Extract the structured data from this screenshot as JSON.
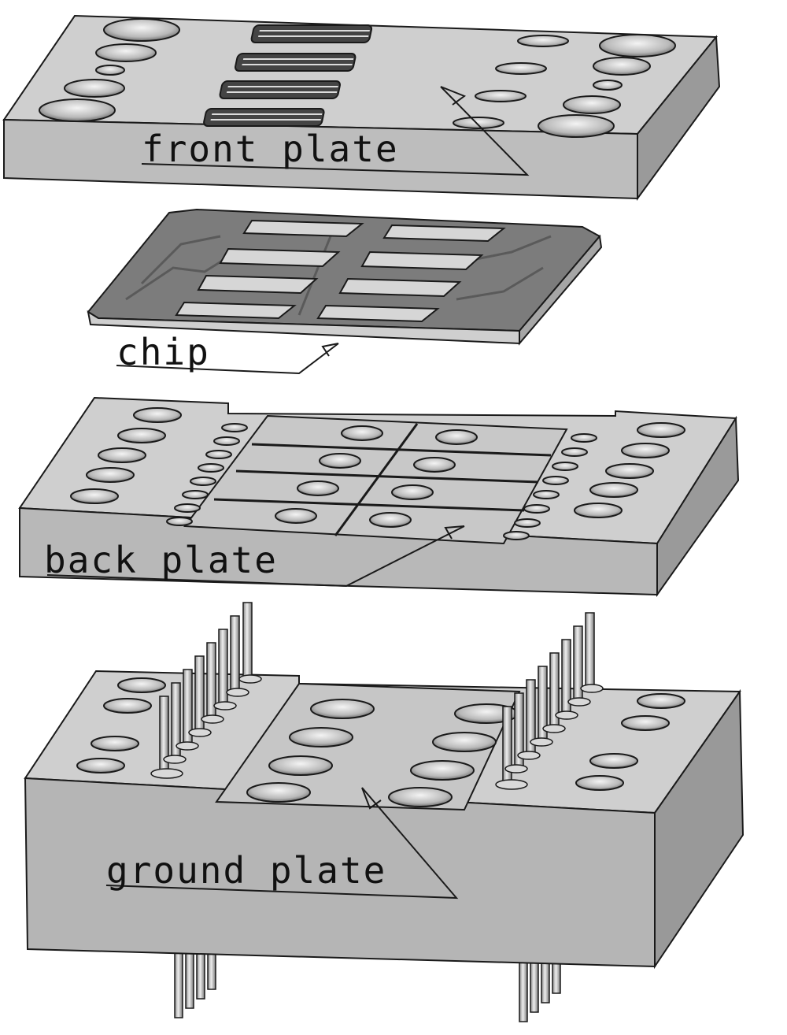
{
  "labels": {
    "front_plate": "front plate",
    "chip": "chip",
    "back_plate": "back plate",
    "ground_plate": "ground plate"
  },
  "colors": {
    "top_face": "#cfcfcf",
    "front_face": "#b8b8b8",
    "side_face": "#9d9d9d",
    "outline": "#1a1a1a",
    "chip_body": "#7c7c7c",
    "chip_pad": "#d6d6d6",
    "pin": "#c4c4c4"
  }
}
